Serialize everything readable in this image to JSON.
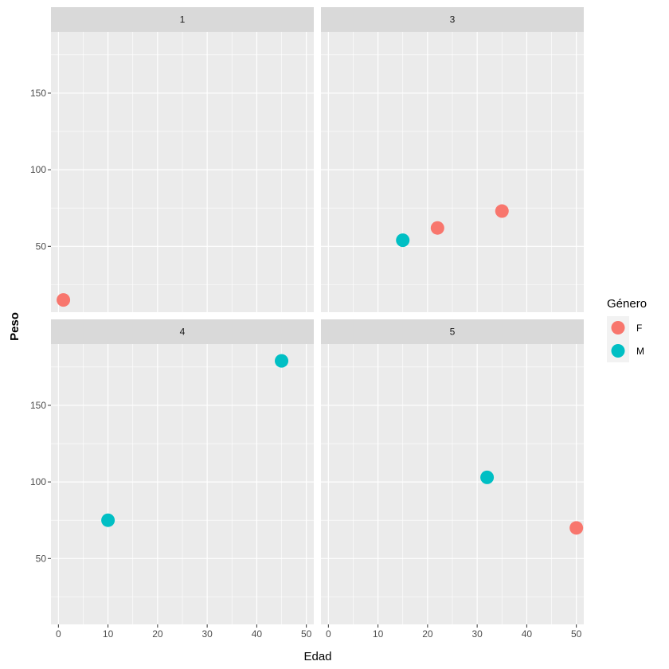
{
  "chart_data": {
    "type": "scatter",
    "facet": "wrap",
    "facet_labels": [
      "1",
      "3",
      "4",
      "5"
    ],
    "xlabel": "Edad",
    "ylabel": "Peso",
    "xlim": [
      -1.5,
      51.5
    ],
    "ylim": [
      7,
      190
    ],
    "x_ticks": [
      0,
      10,
      20,
      30,
      40,
      50
    ],
    "y_ticks": [
      50,
      100,
      150
    ],
    "legend": {
      "title": "Género",
      "position": "right",
      "entries": [
        {
          "label": "F",
          "color": "#F8766D"
        },
        {
          "label": "M",
          "color": "#00BFC4"
        }
      ]
    },
    "panels": [
      {
        "label": "1",
        "points": [
          {
            "x": 1,
            "y": 15,
            "group": "F"
          }
        ]
      },
      {
        "label": "3",
        "points": [
          {
            "x": 15,
            "y": 54,
            "group": "M"
          },
          {
            "x": 22,
            "y": 62,
            "group": "F"
          },
          {
            "x": 35,
            "y": 73,
            "group": "F"
          }
        ]
      },
      {
        "label": "4",
        "points": [
          {
            "x": 10,
            "y": 75,
            "group": "M"
          },
          {
            "x": 45,
            "y": 179,
            "group": "M"
          }
        ]
      },
      {
        "label": "5",
        "points": [
          {
            "x": 32,
            "y": 103,
            "group": "M"
          },
          {
            "x": 50,
            "y": 70,
            "group": "F"
          }
        ]
      }
    ],
    "grid": true,
    "colors": {
      "panel_bg": "#EBEBEB",
      "strip_bg": "#D9D9D9",
      "grid": "#FFFFFF"
    }
  }
}
